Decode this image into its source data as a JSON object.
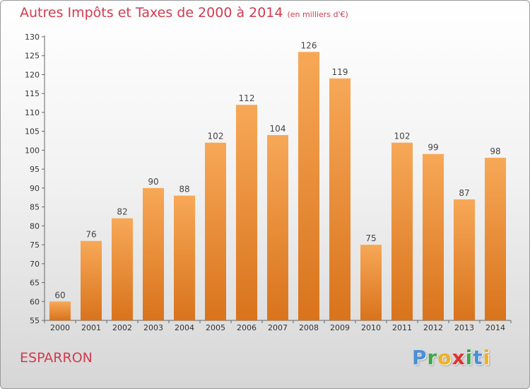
{
  "title": "Autres Impôts et Taxes de 2000 à 2014",
  "unit": "(en milliers d'€)",
  "commune": "ESPARRON",
  "logo": {
    "letters": [
      "P",
      "r",
      "o",
      "x",
      "i",
      "t",
      "i"
    ],
    "colors": [
      "#4a90d9",
      "#3aa84a",
      "#f0b020",
      "#e03030",
      "#3aa84a",
      "#4a90d9",
      "#f0b020"
    ]
  },
  "colors": {
    "bar_top": "#f7a857",
    "bar_bottom": "#d9731c",
    "axis": "#666666",
    "title": "#d23b4f"
  },
  "chart_data": {
    "type": "bar",
    "categories": [
      "2000",
      "2001",
      "2002",
      "2003",
      "2004",
      "2005",
      "2006",
      "2007",
      "2008",
      "2009",
      "2010",
      "2011",
      "2012",
      "2013",
      "2014"
    ],
    "values": [
      60,
      76,
      82,
      90,
      88,
      102,
      112,
      104,
      126,
      119,
      75,
      102,
      99,
      87,
      98
    ],
    "ylim": [
      55,
      130
    ],
    "yticks": [
      55,
      60,
      65,
      70,
      75,
      80,
      85,
      90,
      95,
      100,
      105,
      110,
      115,
      120,
      125,
      130
    ],
    "grid": false,
    "legend": "none"
  }
}
